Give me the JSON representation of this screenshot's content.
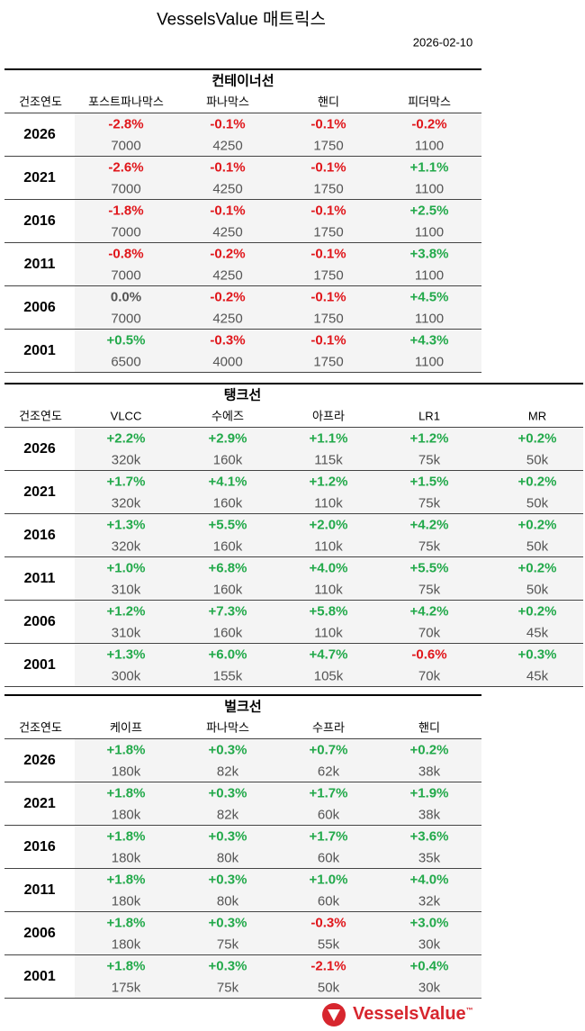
{
  "title": "VesselsValue 매트릭스",
  "date": "2026-02-10",
  "logo": "VesselsValue",
  "logo_mark": "™",
  "sections": [
    {
      "title": "컨테이너선",
      "header_label": "건조연도",
      "columns": [
        "포스트파나막스",
        "파나막스",
        "핸디",
        "피더막스"
      ],
      "rows": [
        {
          "year": "2026",
          "cells": [
            [
              "-2.8%",
              "7000"
            ],
            [
              "-0.1%",
              "4250"
            ],
            [
              "-0.1%",
              "1750"
            ],
            [
              "-0.2%",
              "1100"
            ]
          ]
        },
        {
          "year": "2021",
          "cells": [
            [
              "-2.6%",
              "7000"
            ],
            [
              "-0.1%",
              "4250"
            ],
            [
              "-0.1%",
              "1750"
            ],
            [
              "+1.1%",
              "1100"
            ]
          ]
        },
        {
          "year": "2016",
          "cells": [
            [
              "-1.8%",
              "7000"
            ],
            [
              "-0.1%",
              "4250"
            ],
            [
              "-0.1%",
              "1750"
            ],
            [
              "+2.5%",
              "1100"
            ]
          ]
        },
        {
          "year": "2011",
          "cells": [
            [
              "-0.8%",
              "7000"
            ],
            [
              "-0.2%",
              "4250"
            ],
            [
              "-0.1%",
              "1750"
            ],
            [
              "+3.8%",
              "1100"
            ]
          ]
        },
        {
          "year": "2006",
          "cells": [
            [
              "0.0%",
              "7000"
            ],
            [
              "-0.2%",
              "4250"
            ],
            [
              "-0.1%",
              "1750"
            ],
            [
              "+4.5%",
              "1100"
            ]
          ]
        },
        {
          "year": "2001",
          "cells": [
            [
              "+0.5%",
              "6500"
            ],
            [
              "-0.3%",
              "4000"
            ],
            [
              "-0.1%",
              "1750"
            ],
            [
              "+4.3%",
              "1100"
            ]
          ]
        }
      ]
    },
    {
      "title": "탱크선",
      "header_label": "건조연도",
      "columns": [
        "VLCC",
        "수에즈",
        "아프라",
        "LR1",
        "MR"
      ],
      "rows": [
        {
          "year": "2026",
          "cells": [
            [
              "+2.2%",
              "320k"
            ],
            [
              "+2.9%",
              "160k"
            ],
            [
              "+1.1%",
              "115k"
            ],
            [
              "+1.2%",
              "75k"
            ],
            [
              "+0.2%",
              "50k"
            ]
          ]
        },
        {
          "year": "2021",
          "cells": [
            [
              "+1.7%",
              "320k"
            ],
            [
              "+4.1%",
              "160k"
            ],
            [
              "+1.2%",
              "110k"
            ],
            [
              "+1.5%",
              "75k"
            ],
            [
              "+0.2%",
              "50k"
            ]
          ]
        },
        {
          "year": "2016",
          "cells": [
            [
              "+1.3%",
              "320k"
            ],
            [
              "+5.5%",
              "160k"
            ],
            [
              "+2.0%",
              "110k"
            ],
            [
              "+4.2%",
              "75k"
            ],
            [
              "+0.2%",
              "50k"
            ]
          ]
        },
        {
          "year": "2011",
          "cells": [
            [
              "+1.0%",
              "310k"
            ],
            [
              "+6.8%",
              "160k"
            ],
            [
              "+4.0%",
              "110k"
            ],
            [
              "+5.5%",
              "75k"
            ],
            [
              "+0.2%",
              "50k"
            ]
          ]
        },
        {
          "year": "2006",
          "cells": [
            [
              "+1.2%",
              "310k"
            ],
            [
              "+7.3%",
              "160k"
            ],
            [
              "+5.8%",
              "110k"
            ],
            [
              "+4.2%",
              "70k"
            ],
            [
              "+0.2%",
              "45k"
            ]
          ]
        },
        {
          "year": "2001",
          "cells": [
            [
              "+1.3%",
              "300k"
            ],
            [
              "+6.0%",
              "155k"
            ],
            [
              "+4.7%",
              "105k"
            ],
            [
              "-0.6%",
              "70k"
            ],
            [
              "+0.3%",
              "45k"
            ]
          ]
        }
      ]
    },
    {
      "title": "벌크선",
      "header_label": "건조연도",
      "columns": [
        "케이프",
        "파나막스",
        "수프라",
        "핸디"
      ],
      "rows": [
        {
          "year": "2026",
          "cells": [
            [
              "+1.8%",
              "180k"
            ],
            [
              "+0.3%",
              "82k"
            ],
            [
              "+0.7%",
              "62k"
            ],
            [
              "+0.2%",
              "38k"
            ]
          ]
        },
        {
          "year": "2021",
          "cells": [
            [
              "+1.8%",
              "180k"
            ],
            [
              "+0.3%",
              "82k"
            ],
            [
              "+1.7%",
              "60k"
            ],
            [
              "+1.9%",
              "38k"
            ]
          ]
        },
        {
          "year": "2016",
          "cells": [
            [
              "+1.8%",
              "180k"
            ],
            [
              "+0.3%",
              "80k"
            ],
            [
              "+1.7%",
              "60k"
            ],
            [
              "+3.6%",
              "35k"
            ]
          ]
        },
        {
          "year": "2011",
          "cells": [
            [
              "+1.8%",
              "180k"
            ],
            [
              "+0.3%",
              "80k"
            ],
            [
              "+1.0%",
              "60k"
            ],
            [
              "+4.0%",
              "32k"
            ]
          ]
        },
        {
          "year": "2006",
          "cells": [
            [
              "+1.8%",
              "180k"
            ],
            [
              "+0.3%",
              "75k"
            ],
            [
              "-0.3%",
              "55k"
            ],
            [
              "+3.0%",
              "30k"
            ]
          ]
        },
        {
          "year": "2001",
          "cells": [
            [
              "+1.8%",
              "175k"
            ],
            [
              "+0.3%",
              "75k"
            ],
            [
              "-2.1%",
              "50k"
            ],
            [
              "+0.4%",
              "30k"
            ]
          ]
        }
      ]
    }
  ]
}
